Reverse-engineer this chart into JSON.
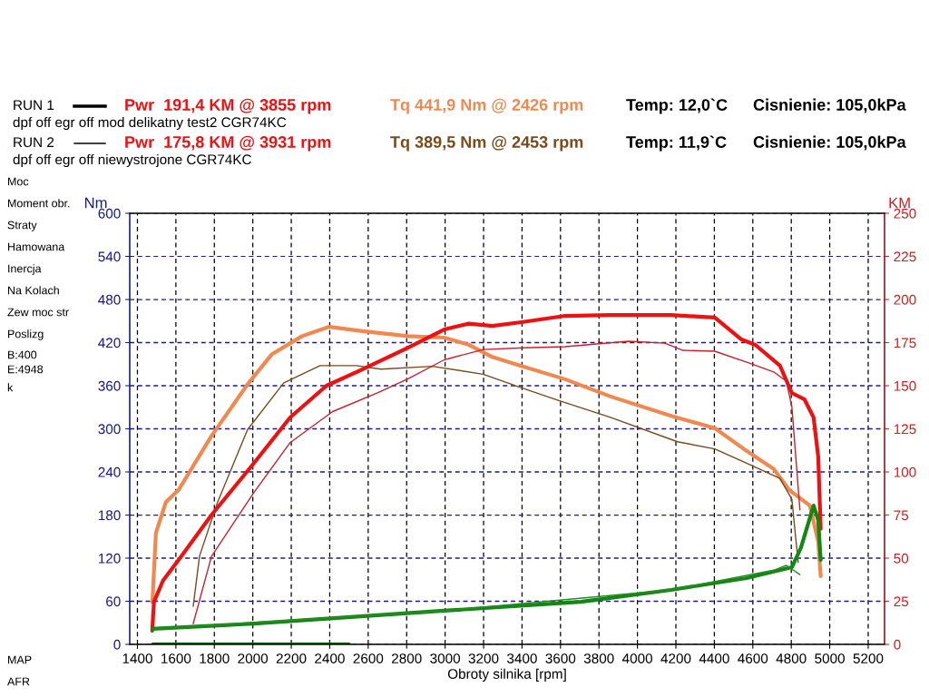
{
  "chart_data": {
    "type": "line",
    "xlabel": "Obroty silnika [rpm]",
    "ylabel": "Nm",
    "y2label": "KM",
    "xlim": [
      1360,
      5285
    ],
    "xticks": [
      1400,
      1600,
      1800,
      2000,
      2200,
      2400,
      2600,
      2800,
      3000,
      3200,
      3400,
      3600,
      3800,
      4000,
      4200,
      4400,
      4600,
      4800,
      5000,
      5200
    ],
    "ylim": [
      0,
      600
    ],
    "yticks": [
      0,
      60,
      120,
      180,
      240,
      300,
      360,
      420,
      480,
      540,
      600
    ],
    "y2lim": [
      0,
      250
    ],
    "y2ticks": [
      0,
      25,
      50,
      75,
      100,
      125,
      150,
      175,
      200,
      225,
      250
    ],
    "grid": true,
    "legend": false,
    "series": [
      {
        "axis": "y2",
        "color": "#ee1111",
        "x": [
          1477,
          1486,
          1533,
          1628,
          1785,
          2005,
          2194,
          2383,
          2571,
          2807,
          2995,
          3123,
          3245,
          3406,
          3624,
          3860,
          4175,
          4402,
          4538,
          4613,
          4741,
          4803,
          4869,
          4916,
          4940,
          4953
        ],
        "values": [
          8,
          24.7,
          37,
          51,
          75,
          105,
          131.6,
          150,
          159.5,
          172,
          182.6,
          186,
          184.7,
          187,
          190.5,
          191,
          191,
          189.5,
          177,
          173.7,
          161.6,
          145.8,
          142,
          131.6,
          109,
          67
        ]
      },
      {
        "axis": "y2",
        "color": "#c8202c",
        "x": [
          1690,
          1785,
          2005,
          2194,
          2415,
          2651,
          2807,
          2995,
          3198,
          3406,
          3624,
          3954,
          4143,
          4237,
          4402,
          4586,
          4709,
          4774,
          4803,
          4845
        ],
        "values": [
          12,
          51,
          88,
          117,
          135,
          146,
          154,
          165,
          171,
          172,
          172.6,
          175.8,
          174.7,
          170.5,
          170,
          163,
          158,
          152.6,
          138,
          78
        ]
      },
      {
        "color": "#f08850",
        "x": [
          1478,
          1496,
          1548,
          1614,
          1785,
          1973,
          2100,
          2256,
          2397,
          2571,
          2807,
          2995,
          3123,
          3245,
          3388,
          3624,
          3860,
          4175,
          4402,
          4553,
          4709,
          4789,
          4897,
          4940,
          4953
        ],
        "values": [
          59,
          155,
          198,
          215,
          290,
          362,
          404,
          429,
          442,
          436,
          429,
          427,
          417,
          400,
          388,
          369,
          345,
          318,
          301,
          272,
          244,
          215,
          193,
          143,
          95
        ]
      },
      {
        "color": "#7a4a1a",
        "x": [
          1690,
          1723,
          1817,
          1973,
          2161,
          2350,
          2539,
          2666,
          2934,
          3198,
          3388,
          3595,
          3860,
          4208,
          4402,
          4586,
          4741,
          4803,
          4836
        ],
        "values": [
          53,
          123,
          198,
          299,
          364,
          388,
          388,
          383,
          387,
          376,
          358,
          339,
          316,
          282,
          272,
          250,
          231,
          202,
          114
        ]
      },
      {
        "axis": "y2",
        "color": "#118811",
        "x": [
          1478,
          2005,
          2995,
          3705,
          4175,
          4567,
          4803,
          4850,
          4916,
          4940,
          4953
        ],
        "values": [
          9,
          12,
          19.5,
          24.7,
          31.6,
          38.4,
          44.7,
          56,
          80.5,
          72,
          49
        ]
      },
      {
        "axis": "y2",
        "color": "#2a8a2a",
        "x": [
          1478,
          2995,
          4175,
          4709,
          4774,
          4845
        ],
        "values": [
          9,
          19.5,
          31.6,
          43,
          45.8,
          40.5
        ]
      },
      {
        "color": "#005500",
        "x": [
          1480,
          2500
        ],
        "values": [
          0,
          0
        ]
      }
    ],
    "annotations": [
      "RUN 1",
      "Pwr  191,4 KM @ 3855 rpm",
      "Tq 441,9 Nm @ 2426 rpm",
      "Temp: 12,0`C",
      "Cisnienie: 105,0kPa",
      "dpf off egr off mod delikatny test2 CGR74KC",
      "RUN 2",
      "Pwr  175,8 KM @ 3931 rpm",
      "Tq 389,5 Nm @ 2453 rpm",
      "Temp: 11,9`C",
      "Cisnienie: 105,0kPa",
      "dpf off egr off niewystrojone CGR74KC",
      "Moc",
      "Moment obr.",
      "Straty",
      "Hamowana",
      "Inercja",
      "Na Kolach",
      "Zew moc str",
      "Poslizg",
      "B:400",
      "E:4948",
      "k",
      "MAP",
      "AFR"
    ]
  }
}
